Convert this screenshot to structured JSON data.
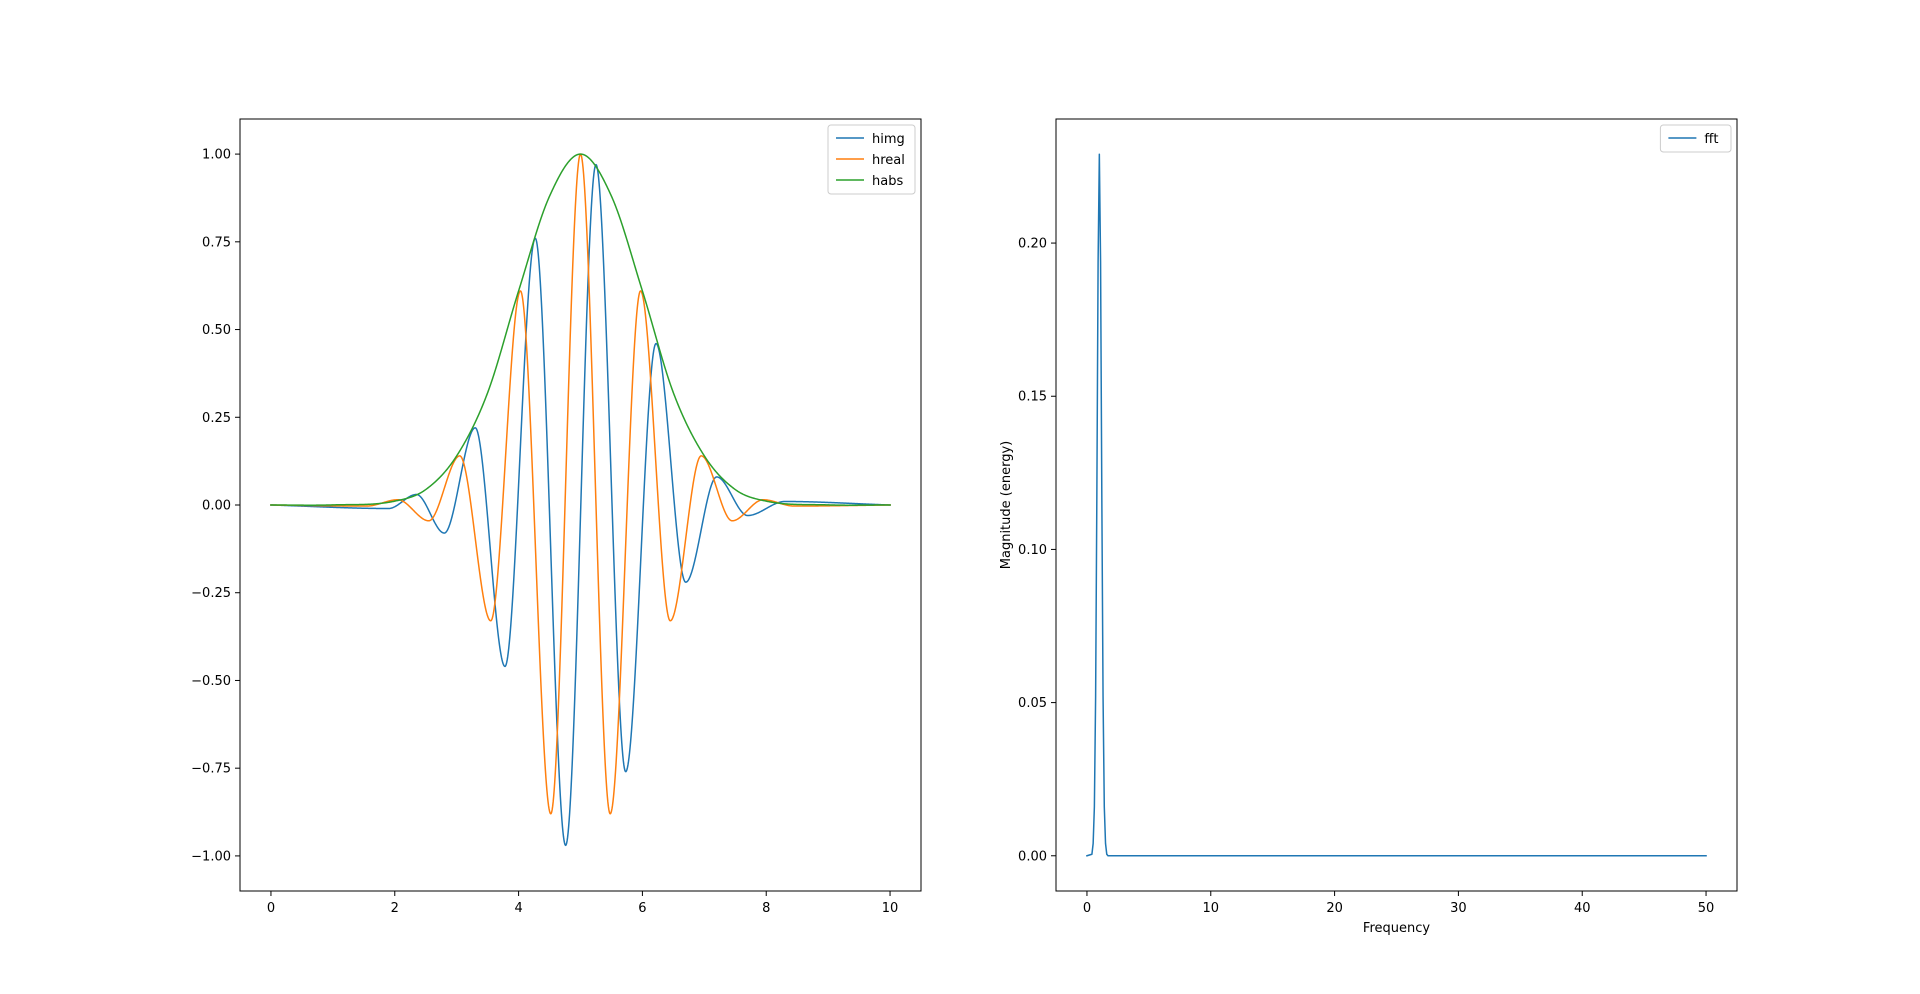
{
  "chart_data": [
    {
      "type": "line",
      "title": "",
      "xlabel": "",
      "ylabel": "",
      "xlim": [
        -0.5,
        10.5
      ],
      "ylim": [
        -1.1,
        1.1
      ],
      "xticks": [
        0,
        2,
        4,
        6,
        8,
        10
      ],
      "xtick_labels": [
        "0",
        "2",
        "4",
        "6",
        "8",
        "10"
      ],
      "yticks": [
        1.0,
        0.75,
        0.5,
        0.25,
        0.0,
        -0.25,
        -0.5,
        -0.75,
        -1.0
      ],
      "ytick_labels": [
        "1.00",
        "0.75",
        "0.50",
        "0.25",
        "0.00",
        "−0.25",
        "−0.50",
        "−0.75",
        "−1.00"
      ],
      "grid": false,
      "legend_position": "top-right",
      "series": [
        {
          "name": "himg",
          "color": "#1f77b4",
          "x": [
            0,
            1.9,
            2.35,
            2.8,
            3.3,
            3.78,
            4.27,
            4.76,
            5.25,
            5.73,
            6.22,
            6.7,
            7.2,
            7.7,
            8.3,
            10
          ],
          "y": [
            0,
            -0.01,
            0.03,
            -0.08,
            0.22,
            -0.46,
            0.76,
            -0.97,
            0.97,
            -0.76,
            0.46,
            -0.22,
            0.08,
            -0.03,
            0.01,
            0
          ]
        },
        {
          "name": "hreal",
          "color": "#ff7f0e",
          "x": [
            0,
            1.55,
            2.05,
            2.55,
            3.05,
            3.55,
            4.03,
            4.52,
            5.0,
            5.48,
            5.97,
            6.45,
            6.95,
            7.45,
            7.95,
            8.45,
            10
          ],
          "y": [
            0,
            -0.003,
            0.015,
            -0.045,
            0.14,
            -0.33,
            0.61,
            -0.88,
            1.0,
            -0.88,
            0.61,
            -0.33,
            0.14,
            -0.045,
            0.015,
            -0.003,
            0
          ]
        },
        {
          "name": "habs",
          "color": "#2ca02c",
          "x": [
            0,
            1.0,
            2.0,
            2.5,
            3.0,
            3.5,
            4.0,
            4.5,
            5.0,
            5.5,
            6.0,
            6.5,
            7.0,
            7.5,
            8.0,
            9.0,
            10
          ],
          "y": [
            0,
            0.0003,
            0.011,
            0.044,
            0.14,
            0.32,
            0.61,
            0.88,
            1.0,
            0.88,
            0.61,
            0.32,
            0.14,
            0.044,
            0.011,
            0.0003,
            0
          ]
        }
      ]
    },
    {
      "type": "line",
      "title": "",
      "xlabel": "Frequency",
      "ylabel": "Magnitude (energy)",
      "xlim": [
        -2.5,
        52.5
      ],
      "ylim": [
        -0.0115,
        0.2405
      ],
      "xticks": [
        0,
        10,
        20,
        30,
        40,
        50
      ],
      "xtick_labels": [
        "0",
        "10",
        "20",
        "30",
        "40",
        "50"
      ],
      "yticks": [
        0.0,
        0.05,
        0.1,
        0.15,
        0.2
      ],
      "ytick_labels": [
        "0.00",
        "0.05",
        "0.10",
        "0.15",
        "0.20"
      ],
      "grid": false,
      "legend_position": "top-right",
      "series": [
        {
          "name": "fft",
          "color": "#1f77b4",
          "x": [
            0,
            0.4,
            0.5,
            0.6,
            0.7,
            0.8,
            0.9,
            1.0,
            1.1,
            1.2,
            1.3,
            1.4,
            1.5,
            1.6,
            1.7,
            2.0,
            50
          ],
          "y": [
            0,
            0.0005,
            0.004,
            0.016,
            0.052,
            0.118,
            0.194,
            0.229,
            0.194,
            0.118,
            0.052,
            0.016,
            0.004,
            0.0005,
            0,
            0,
            0
          ]
        }
      ]
    }
  ]
}
